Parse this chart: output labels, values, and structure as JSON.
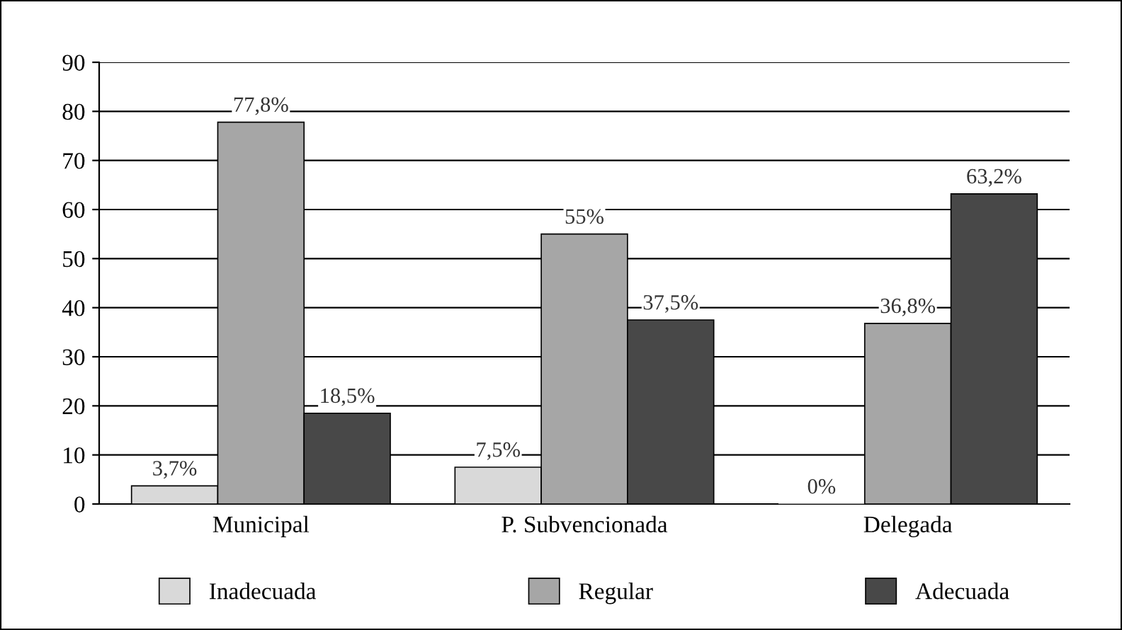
{
  "chart_data": {
    "type": "bar",
    "categories": [
      "Municipal",
      "P. Subvencionada",
      "Delegada"
    ],
    "series": [
      {
        "name": "Inadecuada",
        "color": "#d9d9d9",
        "values": [
          3.7,
          7.5,
          0
        ],
        "value_labels": [
          "3,7%",
          "7,5%",
          "0%"
        ]
      },
      {
        "name": "Regular",
        "color": "#a6a6a6",
        "values": [
          77.8,
          55,
          36.8
        ],
        "value_labels": [
          "77,8%",
          "55%",
          "36,8%"
        ]
      },
      {
        "name": "Adecuada",
        "color": "#484848",
        "values": [
          18.5,
          37.5,
          63.2
        ],
        "value_labels": [
          "18,5%",
          "37,5%",
          "63,2%"
        ]
      }
    ],
    "ylim": [
      0,
      90
    ],
    "yticks": [
      0,
      10,
      20,
      30,
      40,
      50,
      60,
      70,
      80,
      90
    ],
    "grid": "y",
    "legend": "bottom"
  }
}
